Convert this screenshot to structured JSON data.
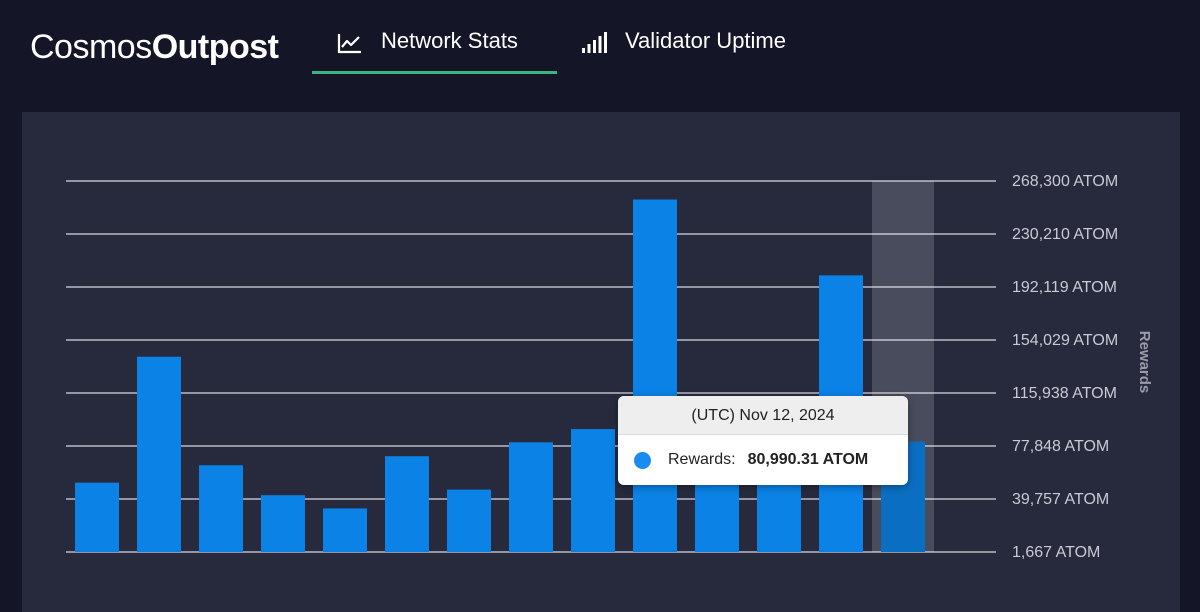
{
  "brand": {
    "light": "Cosmos",
    "bold": "Outpost"
  },
  "tabs": [
    {
      "label": "Network Stats",
      "icon": "line-chart-icon",
      "active": true
    },
    {
      "label": "Validator Uptime",
      "icon": "signal-bars-icon",
      "active": false
    }
  ],
  "colors": {
    "background": "#141628",
    "panel": "#272a3d",
    "accent": "#3fb37f",
    "bar": "#0a82e6",
    "bar_highlight": "#0a6fc2"
  },
  "tooltip": {
    "title": "(UTC) Nov 12, 2024",
    "series_label": "Rewards:",
    "value": "80,990.31 ATOM"
  },
  "chart_data": {
    "type": "bar",
    "ylabel": "Rewards",
    "ylim": [
      1667,
      268300
    ],
    "y_ticks": [
      "268,300 ATOM",
      "230,210 ATOM",
      "192,119 ATOM",
      "154,029 ATOM",
      "115,938 ATOM",
      "77,848 ATOM",
      "39,757 ATOM",
      "1,667 ATOM"
    ],
    "y_tick_values": [
      268300,
      230210,
      192119,
      154029,
      115938,
      77848,
      39757,
      1667
    ],
    "grid": true,
    "series": [
      {
        "values": [
          51500,
          142000,
          64000,
          42500,
          33000,
          70500,
          46500,
          80500,
          90000,
          255000,
          81000,
          81000,
          200500,
          80990.31
        ]
      }
    ],
    "highlighted_index": 13
  }
}
